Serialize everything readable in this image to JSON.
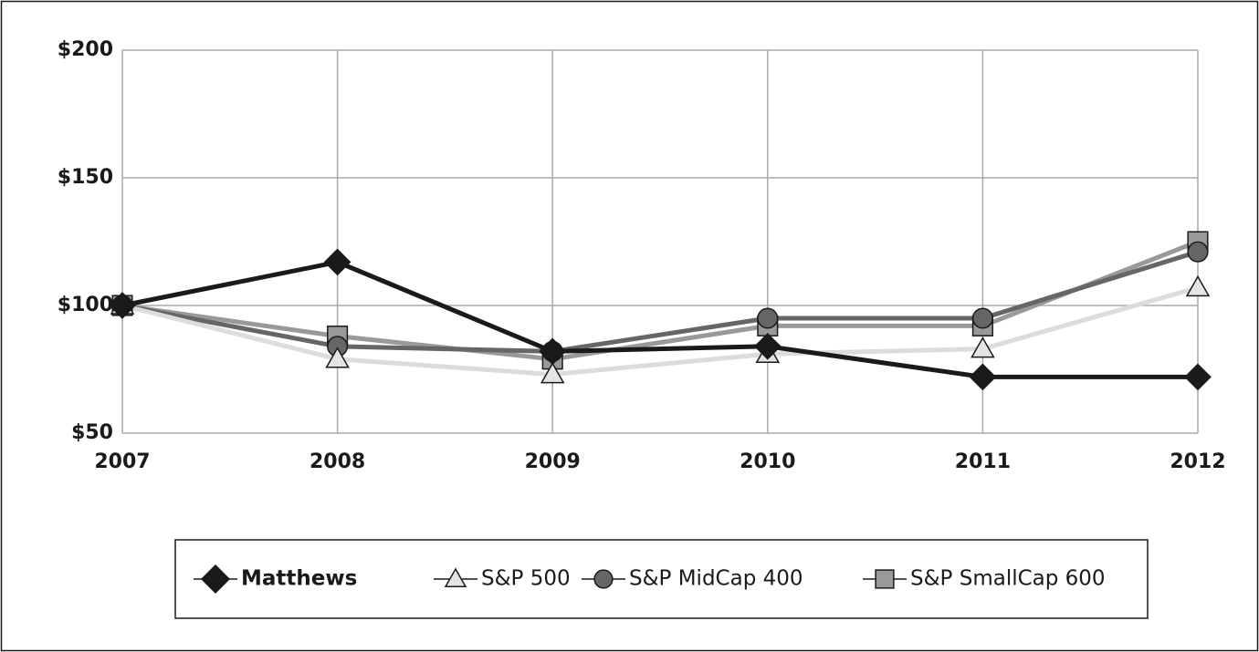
{
  "chart_data": {
    "type": "line",
    "categories": [
      "2007",
      "2008",
      "2009",
      "2010",
      "2011",
      "2012"
    ],
    "series": [
      {
        "name": "Matthews",
        "color": "#1a1a1a",
        "marker": "diamond",
        "values": [
          100,
          117,
          82,
          84,
          72,
          72
        ]
      },
      {
        "name": "S&P 500",
        "color": "#dcdcdc",
        "marker": "triangle",
        "values": [
          100,
          79,
          73,
          81,
          83,
          107
        ]
      },
      {
        "name": "S&P MidCap 400",
        "color": "#666666",
        "marker": "circle",
        "values": [
          100,
          84,
          82,
          95,
          95,
          121
        ]
      },
      {
        "name": "S&P SmallCap 600",
        "color": "#999999",
        "marker": "square",
        "values": [
          100,
          88,
          79,
          92,
          92,
          125
        ]
      }
    ],
    "ylim": [
      50,
      200
    ],
    "yticks": [
      {
        "value": 50,
        "label": "$50"
      },
      {
        "value": 100,
        "label": "$100"
      },
      {
        "value": 150,
        "label": "$150"
      },
      {
        "value": 200,
        "label": "$200"
      }
    ],
    "grid": true,
    "legend": "bottom"
  }
}
